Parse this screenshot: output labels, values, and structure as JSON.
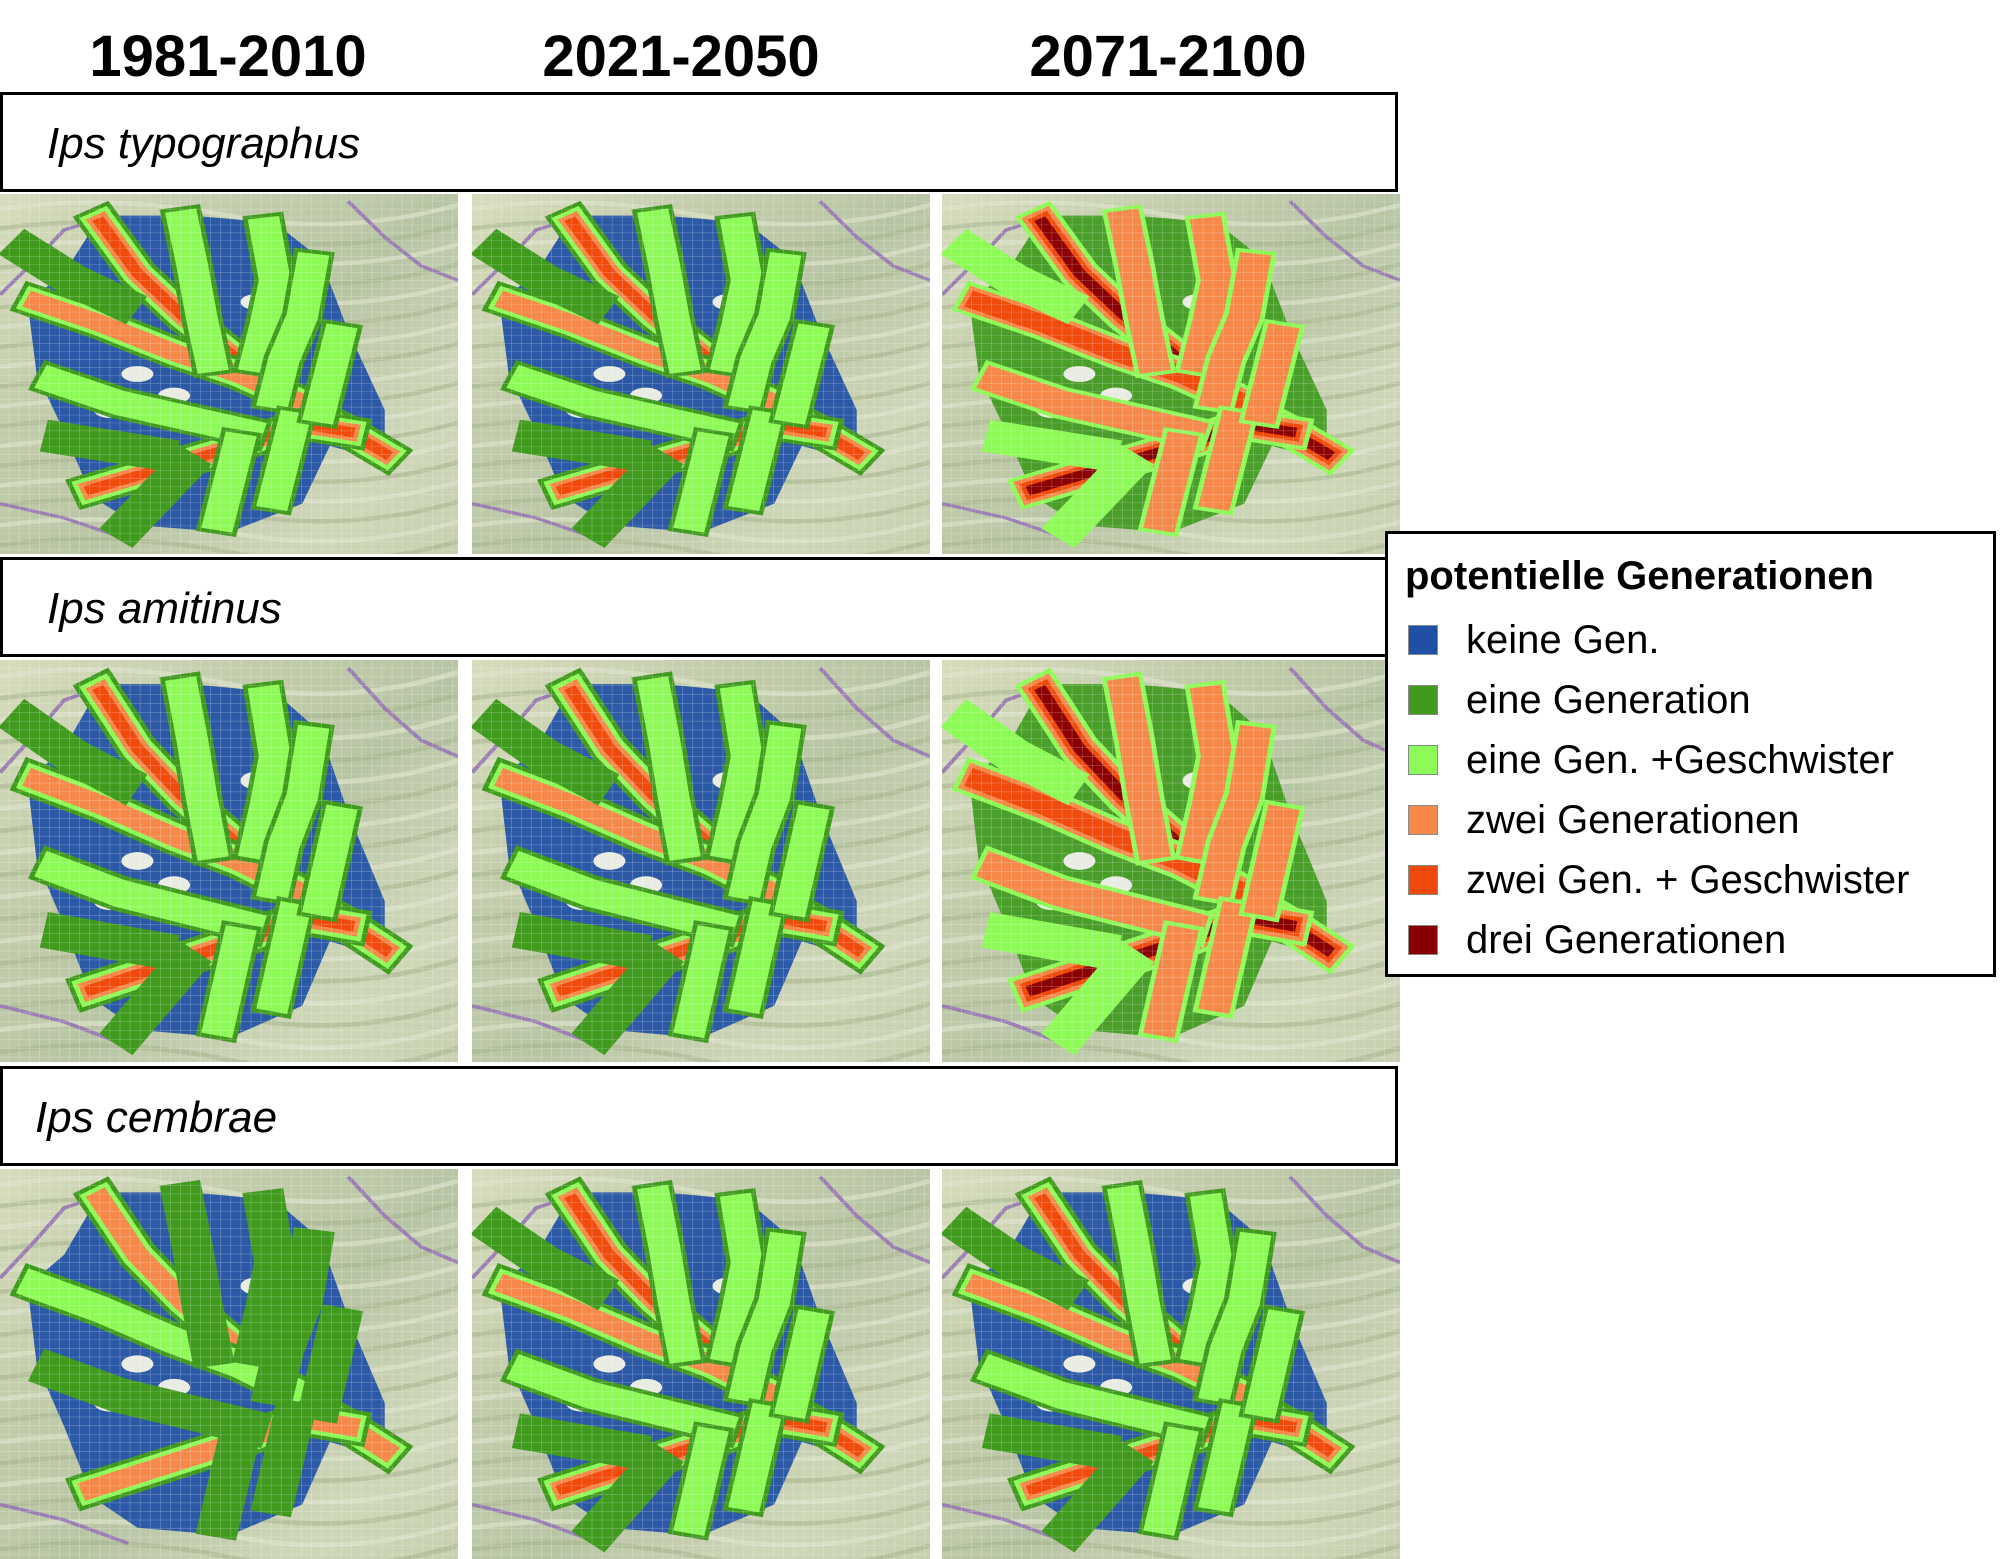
{
  "periods": [
    "1981-2010",
    "2021-2050",
    "2071-2100"
  ],
  "species": [
    "Ips typographus",
    "Ips amitinus",
    "Ips cembrae"
  ],
  "legend": {
    "title": "potentielle  Generationen",
    "items": [
      {
        "label": "keine Gen.",
        "color": "#1f4fa6"
      },
      {
        "label": "eine Generation",
        "color": "#3f9a1e"
      },
      {
        "label": "eine Gen. +Geschwister",
        "color": "#8dfa57"
      },
      {
        "label": "zwei Generationen",
        "color": "#f6894a"
      },
      {
        "label": "zwei Gen. + Geschwister",
        "color": "#f04a0d"
      },
      {
        "label": "drei Generationen",
        "color": "#8a0000"
      }
    ]
  },
  "colors": {
    "none": "#1f4fa6",
    "one": "#3f9a1e",
    "one_sib": "#8dfa57",
    "two": "#f6894a",
    "two_sib": "#f04a0d",
    "three": "#8a0000",
    "basemap": "#c5ceac",
    "border": "#9b7fb3"
  },
  "maps": [
    {
      "species": "Ips typographus",
      "period": "1981-2010",
      "classes": [
        "none",
        "one",
        "one_sib",
        "two",
        "two_sib"
      ]
    },
    {
      "species": "Ips typographus",
      "period": "2021-2050",
      "classes": [
        "none",
        "one",
        "one_sib",
        "two",
        "two_sib"
      ]
    },
    {
      "species": "Ips typographus",
      "period": "2071-2100",
      "classes": [
        "one",
        "one_sib",
        "two",
        "two_sib",
        "three"
      ]
    },
    {
      "species": "Ips amitinus",
      "period": "1981-2010",
      "classes": [
        "none",
        "one",
        "one_sib",
        "two",
        "two_sib"
      ]
    },
    {
      "species": "Ips amitinus",
      "period": "2021-2050",
      "classes": [
        "none",
        "one",
        "one_sib",
        "two",
        "two_sib"
      ]
    },
    {
      "species": "Ips amitinus",
      "period": "2071-2100",
      "classes": [
        "one",
        "one_sib",
        "two",
        "two_sib",
        "three"
      ]
    },
    {
      "species": "Ips cembrae",
      "period": "1981-2010",
      "classes": [
        "none",
        "one",
        "one_sib",
        "two"
      ]
    },
    {
      "species": "Ips cembrae",
      "period": "2021-2050",
      "classes": [
        "none",
        "one",
        "one_sib",
        "two",
        "two_sib"
      ]
    },
    {
      "species": "Ips cembrae",
      "period": "2071-2100",
      "classes": [
        "none",
        "one",
        "one_sib",
        "two",
        "two_sib"
      ]
    }
  ]
}
